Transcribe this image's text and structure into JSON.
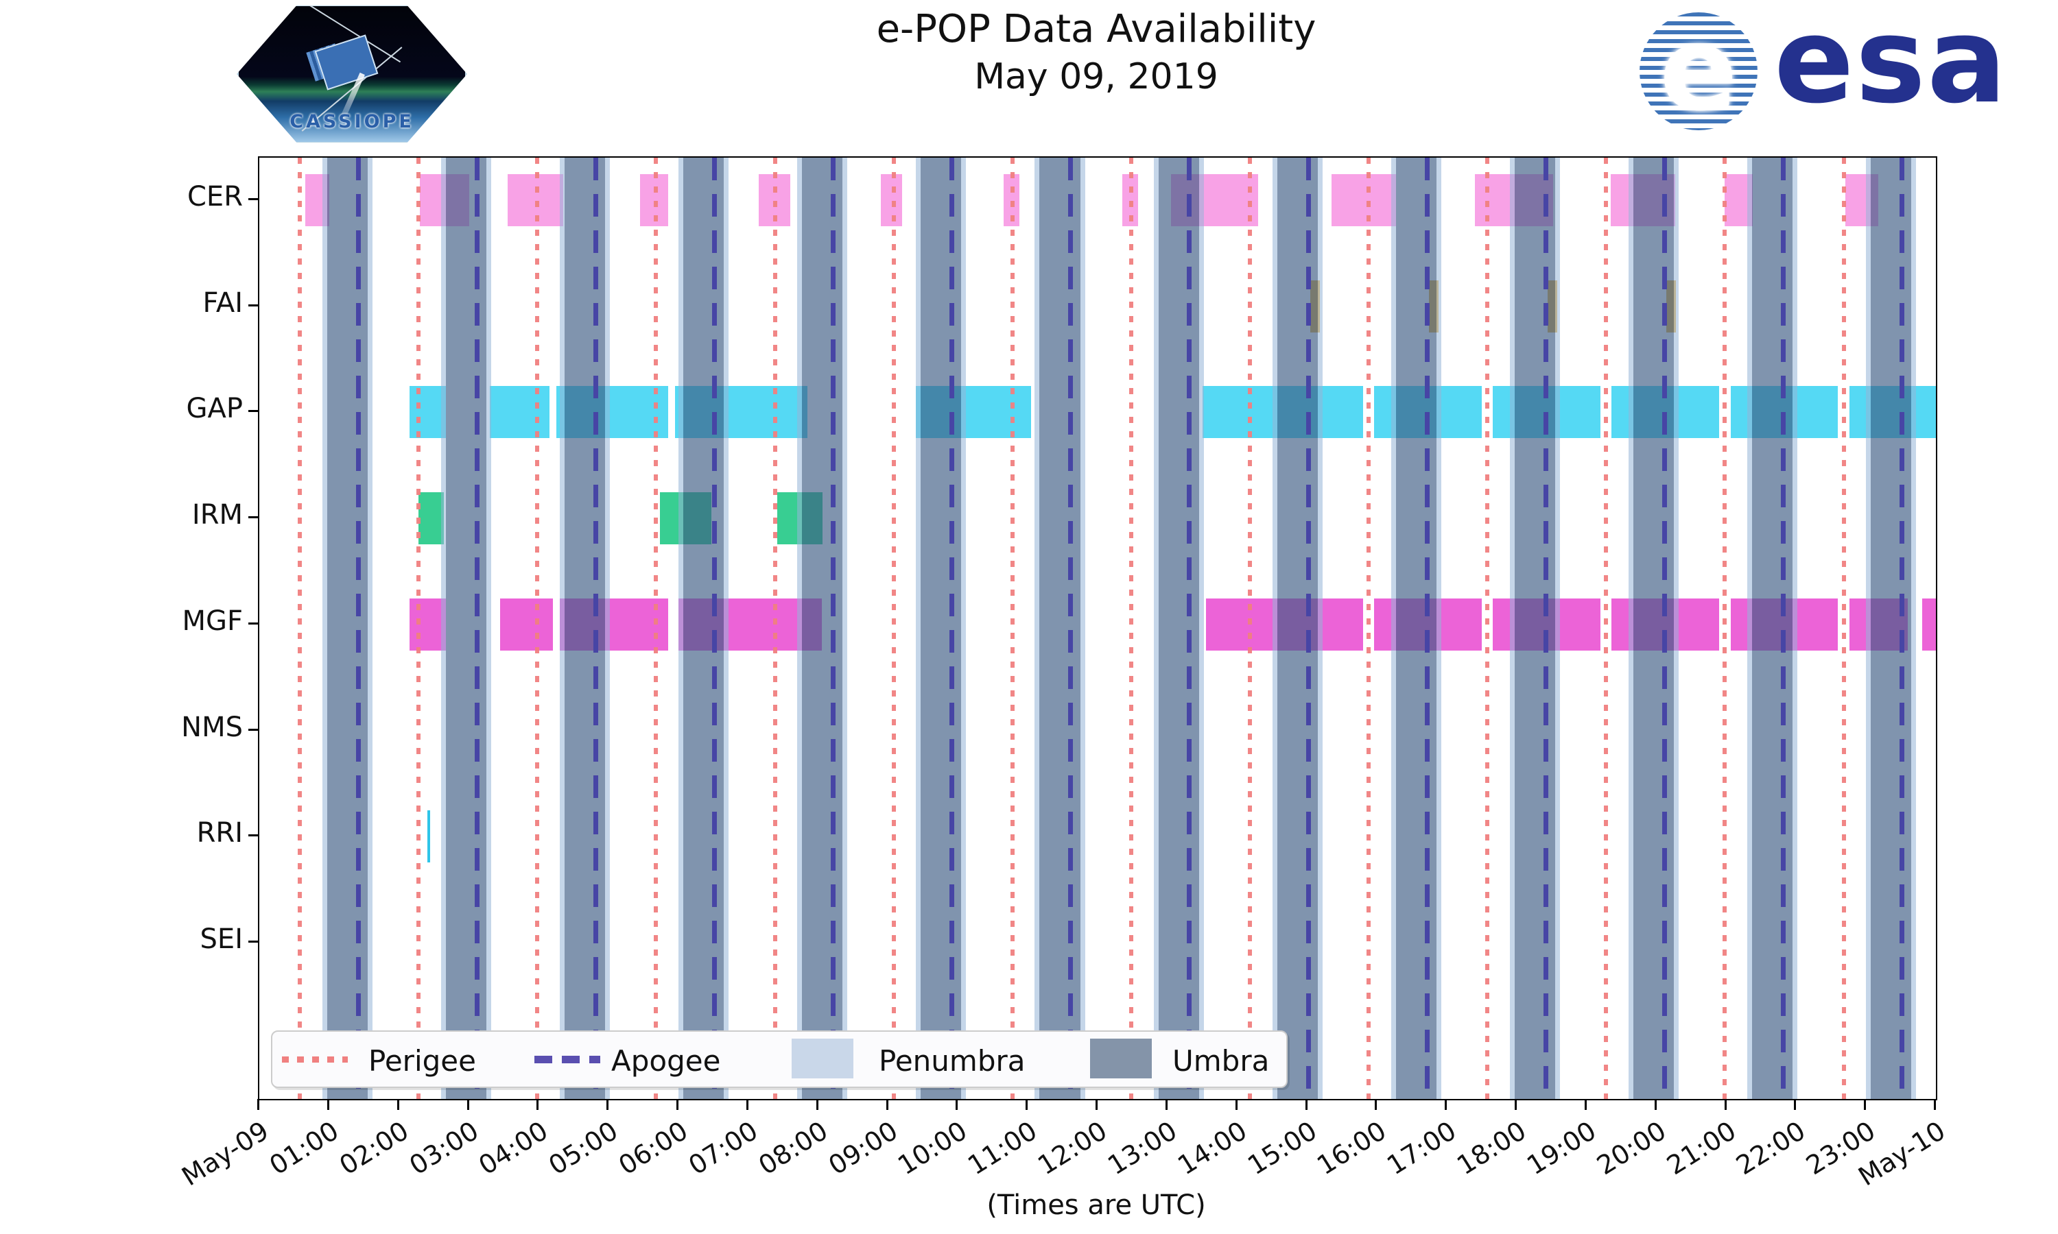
{
  "header": {
    "title": "e-POP Data Availability",
    "subtitle": "May 09, 2019"
  },
  "logos": {
    "cassiope_label": "CASSIOPE",
    "esa_globe_letter": "e",
    "esa_wordmark": "esa"
  },
  "legend": {
    "perigee_label": "Perigee",
    "apogee_label": "Apogee",
    "penumbra_label": "Penumbra",
    "umbra_label": "Umbra"
  },
  "axis": {
    "caption": "(Times are UTC)",
    "x_tick_labels": [
      "May-09",
      "01:00",
      "02:00",
      "03:00",
      "04:00",
      "05:00",
      "06:00",
      "07:00",
      "08:00",
      "09:00",
      "10:00",
      "11:00",
      "12:00",
      "13:00",
      "14:00",
      "15:00",
      "16:00",
      "17:00",
      "18:00",
      "19:00",
      "20:00",
      "21:00",
      "22:00",
      "23:00",
      "May-10"
    ],
    "instruments": [
      "CER",
      "FAI",
      "GAP",
      "IRM",
      "MGF",
      "NMS",
      "RRI",
      "SEI"
    ]
  },
  "colors": {
    "perigee": "#F08080",
    "apogee": "#4745A5",
    "umbra": "#8494A9",
    "penumbra": "#C9D7E9",
    "esa_navy": "#24318E"
  },
  "chart_data": {
    "type": "timeline",
    "title": "e-POP Data Availability",
    "subtitle": "May 09, 2019",
    "x_axis": {
      "unit": "hours_utc",
      "range": [
        0,
        24
      ],
      "caption": "(Times are UTC)"
    },
    "orbit_events": {
      "perigee_hours": [
        0.58,
        2.28,
        3.98,
        5.68,
        7.38,
        9.08,
        10.78,
        12.48,
        14.18,
        15.88,
        17.58,
        19.28,
        20.98,
        22.68
      ],
      "apogee_hours": [
        1.41,
        3.11,
        4.81,
        6.51,
        8.21,
        9.91,
        11.61,
        13.31,
        15.01,
        16.71,
        18.41,
        20.11,
        21.81,
        23.51
      ],
      "umbra_intervals": [
        [
          0.97,
          1.55
        ],
        [
          2.67,
          3.25
        ],
        [
          4.37,
          4.95
        ],
        [
          6.07,
          6.65
        ],
        [
          7.77,
          8.35
        ],
        [
          9.47,
          10.05
        ],
        [
          11.17,
          11.75
        ],
        [
          12.87,
          13.45
        ],
        [
          14.57,
          15.15
        ],
        [
          16.27,
          16.85
        ],
        [
          17.97,
          18.55
        ],
        [
          19.67,
          20.25
        ],
        [
          21.37,
          21.95
        ],
        [
          23.07,
          23.65
        ]
      ],
      "penumbra_edge_hours": 0.07
    },
    "series": [
      {
        "name": "CER",
        "color": "#F8A2E6",
        "intervals": [
          [
            0.66,
            1.0
          ],
          [
            2.3,
            3.0
          ],
          [
            3.55,
            4.35
          ],
          [
            5.45,
            5.85
          ],
          [
            7.15,
            7.6
          ],
          [
            8.9,
            9.2
          ],
          [
            10.65,
            10.88
          ],
          [
            12.35,
            12.58
          ],
          [
            13.05,
            14.3
          ],
          [
            15.35,
            16.27
          ],
          [
            17.4,
            18.52
          ],
          [
            19.35,
            20.27
          ],
          [
            20.98,
            21.38
          ],
          [
            22.7,
            23.18
          ]
        ]
      },
      {
        "name": "FAI",
        "color": "#E9B44C",
        "intervals": [
          [
            15.04,
            15.18
          ],
          [
            16.74,
            16.88
          ],
          [
            18.44,
            18.58
          ],
          [
            20.14,
            20.28
          ]
        ]
      },
      {
        "name": "GAP",
        "color": "#55D9F4",
        "intervals": [
          [
            2.15,
            2.67
          ],
          [
            3.3,
            4.15
          ],
          [
            4.25,
            5.85
          ],
          [
            5.95,
            7.85
          ],
          [
            9.4,
            11.05
          ],
          [
            13.5,
            15.8
          ],
          [
            15.96,
            17.5
          ],
          [
            17.66,
            19.2
          ],
          [
            19.36,
            20.9
          ],
          [
            21.06,
            22.6
          ],
          [
            22.76,
            24.0
          ]
        ]
      },
      {
        "name": "IRM",
        "color": "#38CE92",
        "intervals": [
          [
            2.28,
            2.64
          ],
          [
            5.73,
            6.47
          ],
          [
            7.41,
            8.06
          ]
        ]
      },
      {
        "name": "MGF",
        "color": "#EC63D7",
        "intervals": [
          [
            2.15,
            2.67
          ],
          [
            3.45,
            4.2
          ],
          [
            4.3,
            5.85
          ],
          [
            6.0,
            8.05
          ],
          [
            13.55,
            15.8
          ],
          [
            15.96,
            17.5
          ],
          [
            17.66,
            19.2
          ],
          [
            19.36,
            20.9
          ],
          [
            21.06,
            22.6
          ],
          [
            22.76,
            23.6
          ],
          [
            23.8,
            24.0
          ]
        ]
      },
      {
        "name": "NMS",
        "color": "#9ad0f0",
        "intervals": []
      },
      {
        "name": "RRI",
        "color": "#2FC5E8",
        "intervals": [
          [
            2.41,
            2.45
          ]
        ]
      },
      {
        "name": "SEI",
        "color": "#9ad0f0",
        "intervals": []
      }
    ]
  }
}
